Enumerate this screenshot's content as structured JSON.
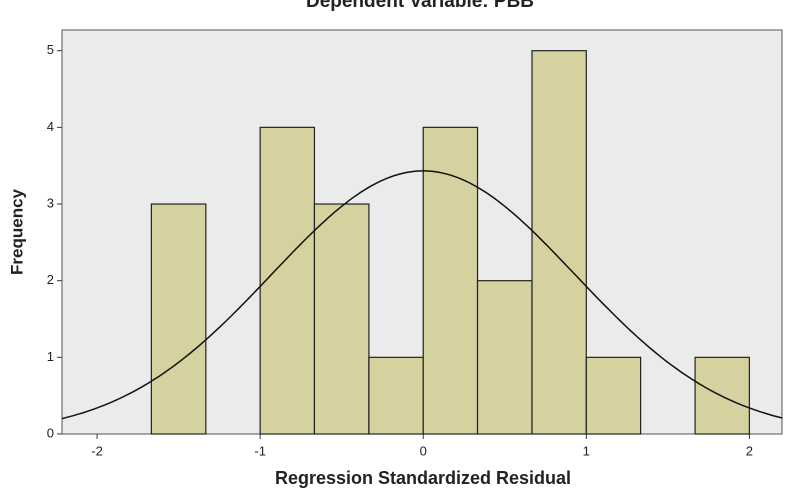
{
  "chart_data": {
    "type": "histogram",
    "title": "Dependent Variable: PBB",
    "x_label": "Regression Standardized Residual",
    "y_label": "Frequency",
    "bins": [
      -1.667,
      -1.333,
      -1,
      -0.667,
      -0.333,
      0,
      0.333,
      0.667,
      1,
      1.333,
      1.667,
      2
    ],
    "values": [
      3,
      0,
      4,
      3,
      1,
      4,
      2,
      5,
      1,
      0,
      1
    ],
    "color": "#d6d2a0",
    "curve": {
      "mean": 0,
      "std": 0.93
    },
    "xlim": [
      -2.215,
      2.2
    ],
    "ylim": [
      0,
      5.27
    ],
    "xticks": [
      -2,
      -1,
      0,
      1,
      2
    ],
    "yticks": [
      0,
      1,
      2,
      3,
      4,
      5
    ]
  }
}
